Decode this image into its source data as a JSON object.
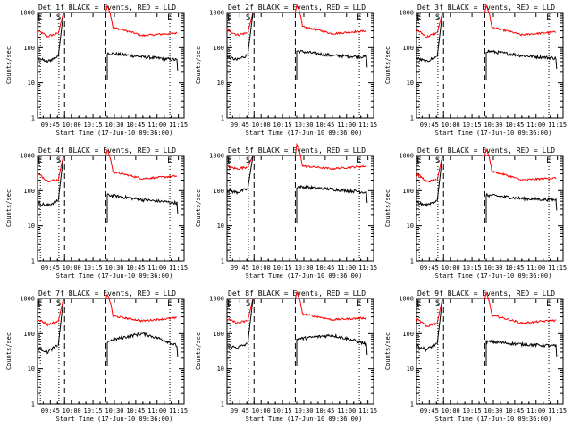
{
  "chart_data": [
    {
      "type": "line",
      "title": "Det 1f BLACK = Events, RED = LLD",
      "panel": "1f"
    },
    {
      "type": "line",
      "title": "Det 2f BLACK = Events, RED = LLD",
      "panel": "2f"
    },
    {
      "type": "line",
      "title": "Det 3f BLACK = Events, RED = LLD",
      "panel": "3f"
    },
    {
      "type": "line",
      "title": "Det 4f BLACK = Events, RED = LLD",
      "panel": "4f"
    },
    {
      "type": "line",
      "title": "Det 5f BLACK = Events, RED = LLD",
      "panel": "5f"
    },
    {
      "type": "line",
      "title": "Det 6f BLACK = Events, RED = LLD",
      "panel": "6f"
    },
    {
      "type": "line",
      "title": "Det 7f BLACK = Events, RED = LLD",
      "panel": "7f"
    },
    {
      "type": "line",
      "title": "Det 8f BLACK = Events, RED = LLD",
      "panel": "8f"
    },
    {
      "type": "line",
      "title": "Det 9f BLACK = Events, RED = LLD",
      "panel": "9f"
    }
  ],
  "shared": {
    "xlabel": "Start Time (17-Jun-10 09:36:00)",
    "ylabel": "Counts/sec",
    "x_ticks": [
      "09:45",
      "10:00",
      "10:15",
      "10:30",
      "10:45",
      "11:00",
      "11:15"
    ],
    "y_ticks": [
      "1",
      "10",
      "100",
      "1000"
    ],
    "y_scale": "log",
    "ylim": [
      1,
      1000
    ],
    "xlim_minutes": [
      0,
      103
    ],
    "x_tick_minutes": [
      9,
      24,
      39,
      54,
      69,
      84,
      99
    ],
    "markers": [
      {
        "label": "E",
        "minute": 2,
        "style": "dotted"
      },
      {
        "label": "S",
        "minute": 15,
        "style": "dotted"
      },
      {
        "label": "",
        "minute": 19,
        "style": "dashed"
      },
      {
        "label": "",
        "minute": 48,
        "style": "dashed"
      },
      {
        "label": "E",
        "minute": 93,
        "style": "dotted"
      }
    ],
    "gap_minutes": [
      19,
      48
    ],
    "series": [
      {
        "name": "Events",
        "color": "#000000"
      },
      {
        "name": "LLD",
        "color": "#ff0000"
      }
    ]
  },
  "profiles": {
    "1f": {
      "ev_pre": [
        50,
        40,
        55
      ],
      "ev_post": [
        70,
        55,
        45
      ],
      "lld_pre": [
        300,
        210,
        250
      ],
      "lld_post": [
        400,
        220,
        260
      ]
    },
    "2f": {
      "ev_pre": [
        55,
        45,
        60
      ],
      "ev_post": [
        80,
        60,
        55
      ],
      "lld_pre": [
        320,
        230,
        260
      ],
      "lld_post": [
        420,
        250,
        300
      ]
    },
    "3f": {
      "ev_pre": [
        50,
        40,
        55
      ],
      "ev_post": [
        80,
        60,
        50
      ],
      "lld_pre": [
        320,
        200,
        260
      ],
      "lld_post": [
        400,
        230,
        280
      ]
    },
    "4f": {
      "ev_pre": [
        45,
        38,
        50
      ],
      "ev_post": [
        75,
        55,
        45
      ],
      "lld_pre": [
        300,
        190,
        200
      ],
      "lld_post": [
        360,
        220,
        260
      ]
    },
    "5f": {
      "ev_pre": [
        100,
        90,
        110
      ],
      "ev_post": [
        130,
        110,
        90
      ],
      "lld_pre": [
        480,
        420,
        470
      ],
      "lld_post": [
        520,
        420,
        500
      ]
    },
    "6f": {
      "ev_pre": [
        45,
        40,
        50
      ],
      "ev_post": [
        75,
        60,
        55
      ],
      "lld_pre": [
        300,
        180,
        200
      ],
      "lld_post": [
        380,
        200,
        230
      ]
    },
    "7f": {
      "ev_pre": [
        40,
        30,
        45
      ],
      "ev_post": [
        60,
        100,
        45
      ],
      "lld_pre": [
        260,
        180,
        220
      ],
      "lld_post": [
        330,
        230,
        280
      ]
    },
    "8f": {
      "ev_pre": [
        45,
        40,
        50
      ],
      "ev_post": [
        70,
        90,
        50
      ],
      "lld_pre": [
        260,
        200,
        230
      ],
      "lld_post": [
        380,
        250,
        280
      ]
    },
    "9f": {
      "ev_pre": [
        45,
        35,
        50
      ],
      "ev_post": [
        60,
        50,
        45
      ],
      "lld_pre": [
        260,
        160,
        200
      ],
      "lld_post": [
        350,
        200,
        240
      ]
    }
  }
}
